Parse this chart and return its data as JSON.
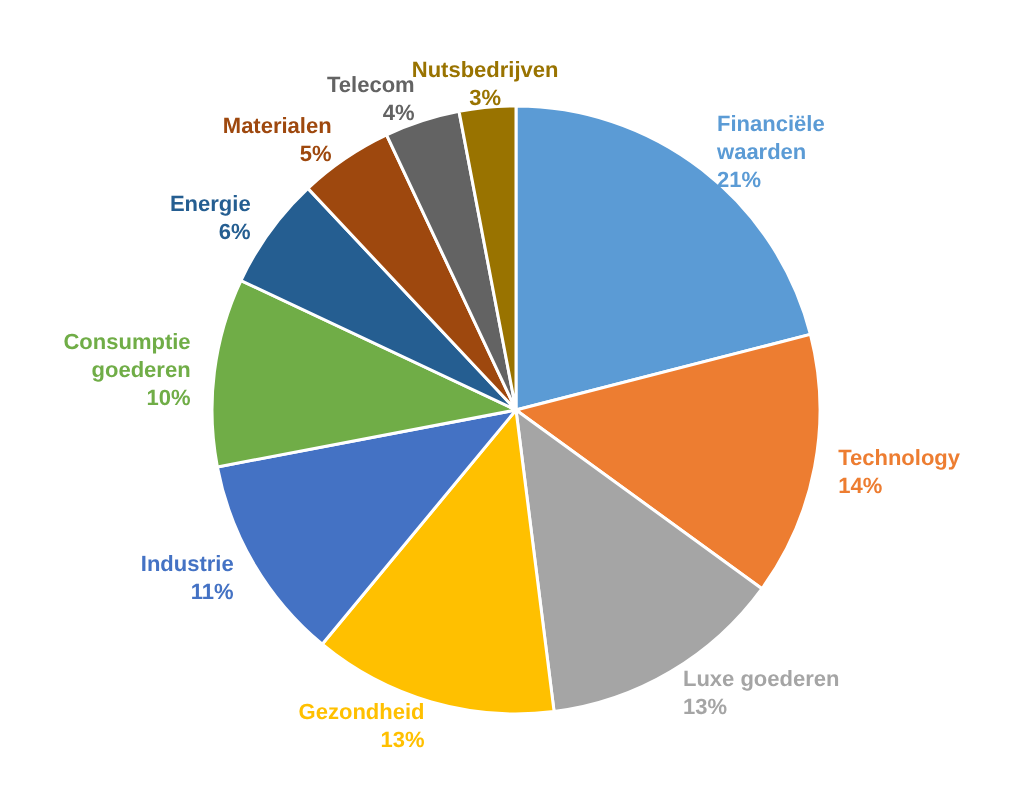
{
  "chart_data": {
    "type": "pie",
    "categories": [
      "Financiële\nwaarden",
      "Technology",
      "Luxe goederen",
      "Gezondheid",
      "Industrie",
      "Consumptie\ngoederen",
      "Energie",
      "Materialen",
      "Telecom",
      "Nutsbedrijven"
    ],
    "values": [
      21,
      14,
      13,
      13,
      11,
      10,
      6,
      5,
      4,
      3
    ],
    "value_labels": [
      "21%",
      "14%",
      "13%",
      "13%",
      "11%",
      "10%",
      "6%",
      "5%",
      "4%",
      "3%"
    ],
    "colors": [
      "#5b9bd5",
      "#ed7d31",
      "#a5a5a5",
      "#ffc000",
      "#4472c4",
      "#70ad47",
      "#255e91",
      "#9e480e",
      "#636363",
      "#997300"
    ],
    "legend": false
  }
}
